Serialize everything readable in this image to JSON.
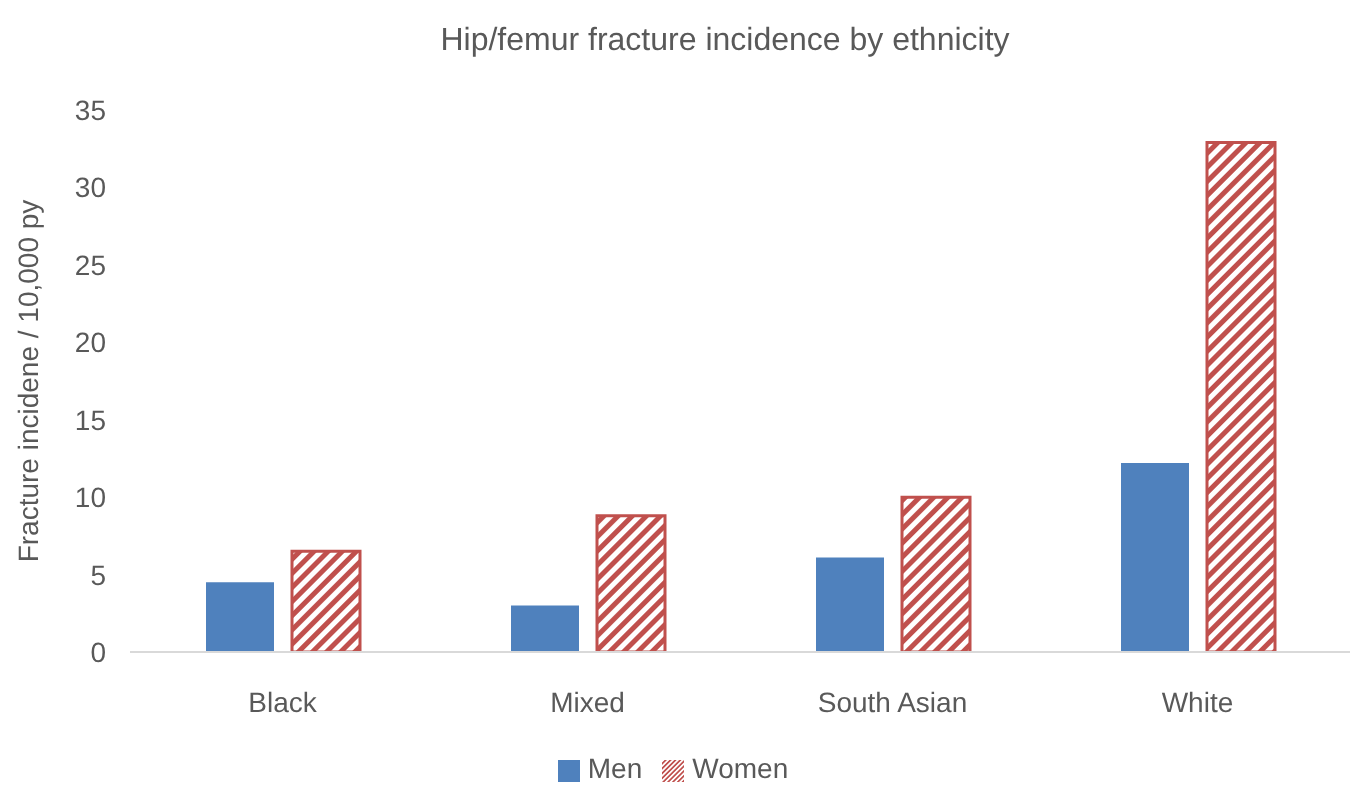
{
  "chart_data": {
    "type": "bar",
    "title": "Hip/femur fracture incidence by ethnicity",
    "ylabel": "Fracture incidene / 10,000 py",
    "categories": [
      "Black",
      "Mixed",
      "South Asian",
      "White"
    ],
    "series": [
      {
        "name": "Men",
        "color": "#4f81bd",
        "values": [
          4.5,
          3.0,
          6.1,
          12.2
        ]
      },
      {
        "name": "Women",
        "color": "#c0504d",
        "values": [
          6.5,
          8.8,
          10.0,
          32.9
        ]
      }
    ],
    "ylim": [
      0,
      35
    ],
    "yticks": [
      0,
      5,
      10,
      15,
      20,
      25,
      30,
      35
    ],
    "grid": false,
    "legend": "bottom"
  }
}
